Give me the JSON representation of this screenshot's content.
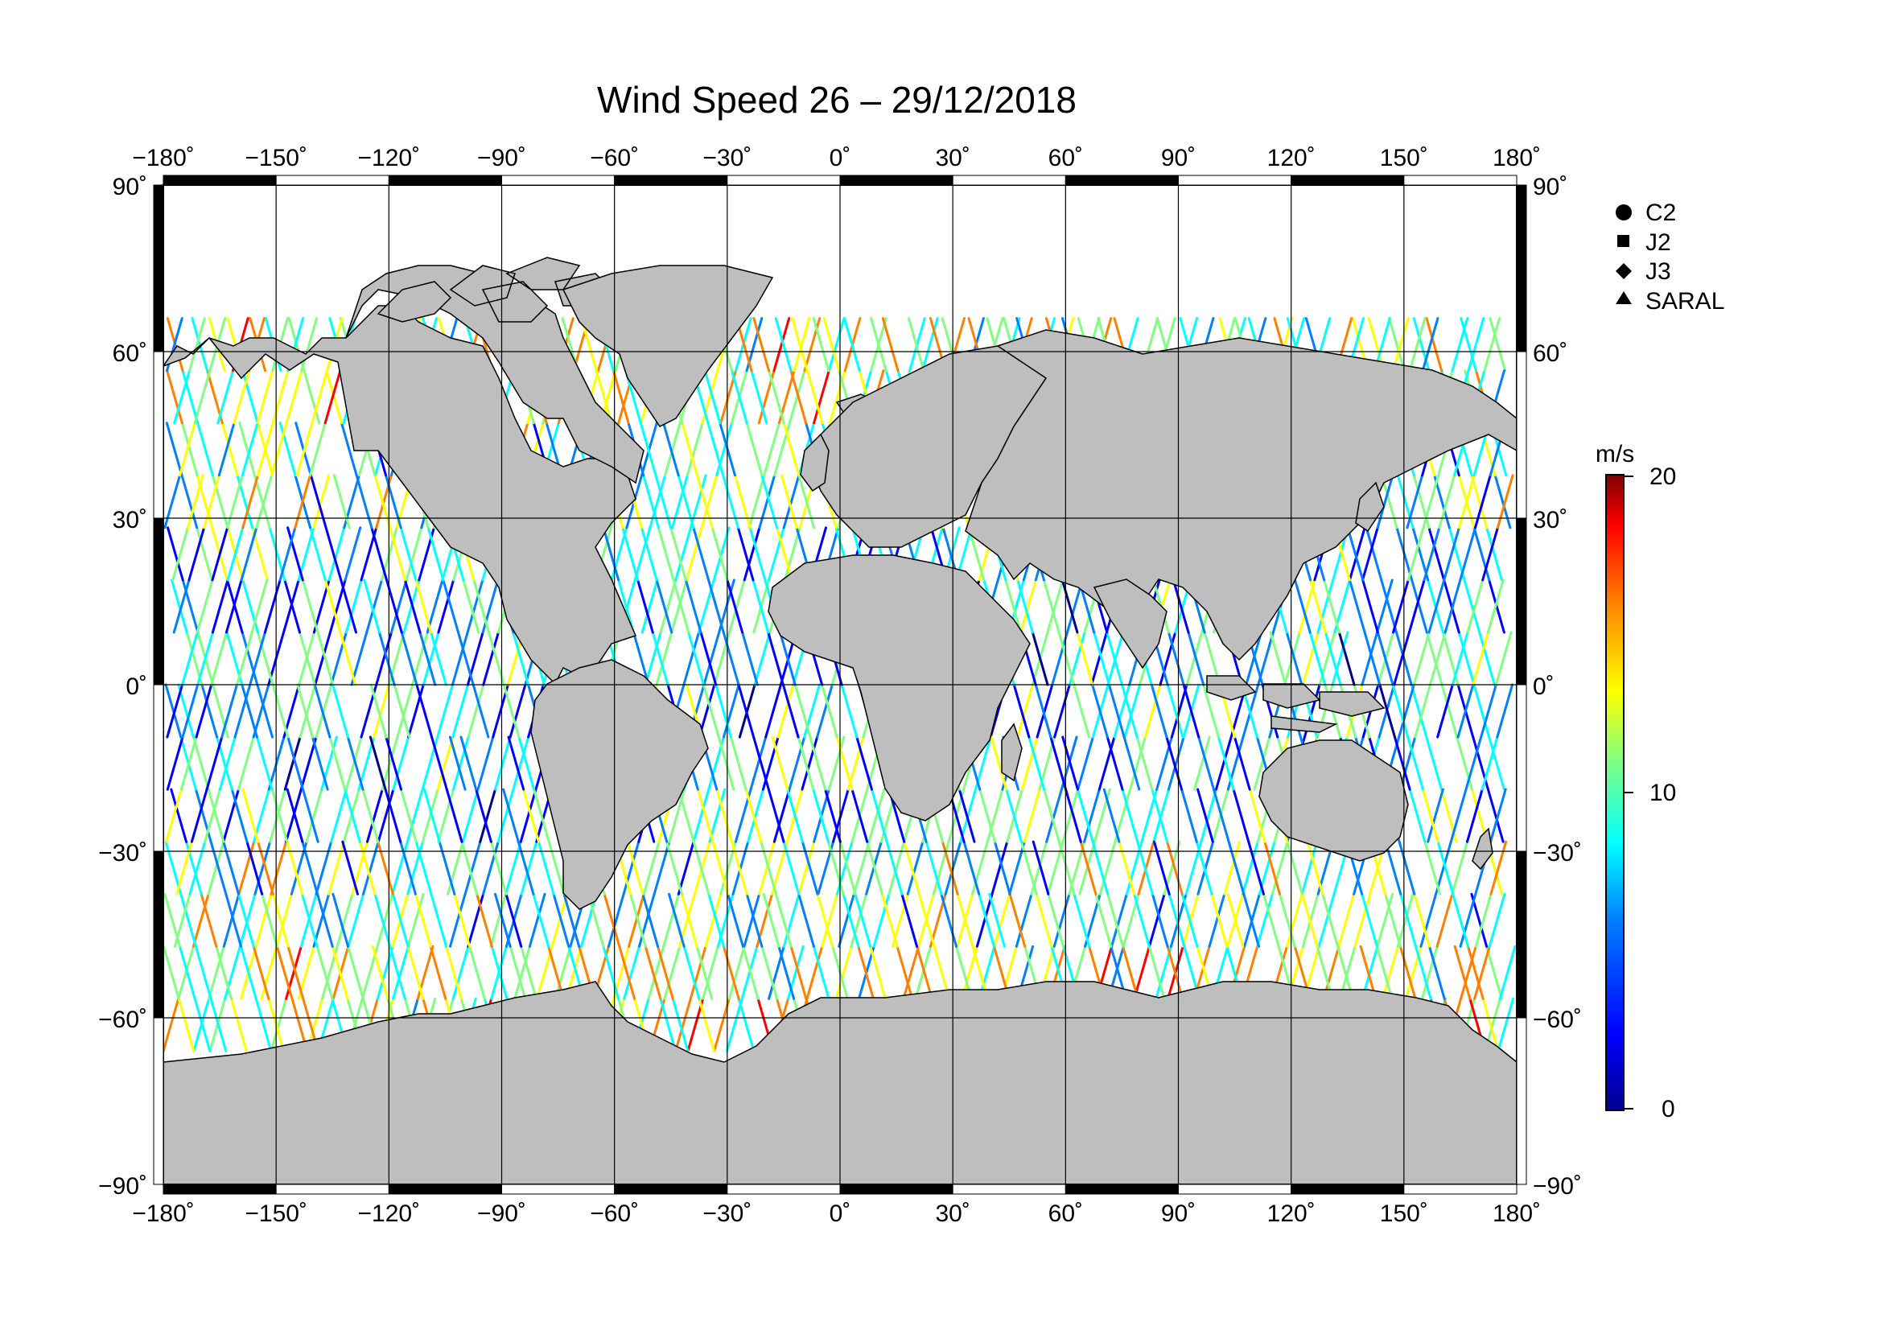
{
  "title": "Wind Speed 26 – 29/12/2018",
  "map": {
    "projection": "plate carrée (equirectangular)",
    "lon_ticks": [
      "−180˚",
      "−150˚",
      "−120˚",
      "−90˚",
      "−60˚",
      "−30˚",
      "0˚",
      "30˚",
      "60˚",
      "90˚",
      "120˚",
      "150˚",
      "180˚"
    ],
    "lat_ticks_left": [
      "90˚",
      "60˚",
      "30˚",
      "0˚",
      "−30˚",
      "−60˚",
      "−90˚"
    ],
    "lat_ticks_right": [
      "90˚",
      "60˚",
      "30˚",
      "0˚",
      "−30˚",
      "−60˚",
      "−90˚"
    ],
    "land_color": "#bebebe",
    "ocean_color": "#ffffff",
    "grid": true
  },
  "legend": {
    "items": [
      {
        "symbol": "circle",
        "label": "C2"
      },
      {
        "symbol": "square",
        "label": "J2"
      },
      {
        "symbol": "diamond",
        "label": "J3"
      },
      {
        "symbol": "triangle",
        "label": "SARAL"
      }
    ]
  },
  "colorbar": {
    "unit": "m/s",
    "min": 0,
    "max": 20,
    "tick_labels": [
      "20",
      "10",
      "0"
    ],
    "colormap": [
      "#00008f",
      "#0000ff",
      "#0080ff",
      "#00ffff",
      "#80ff80",
      "#ffff00",
      "#ff8000",
      "#ff0000",
      "#800000"
    ]
  }
}
